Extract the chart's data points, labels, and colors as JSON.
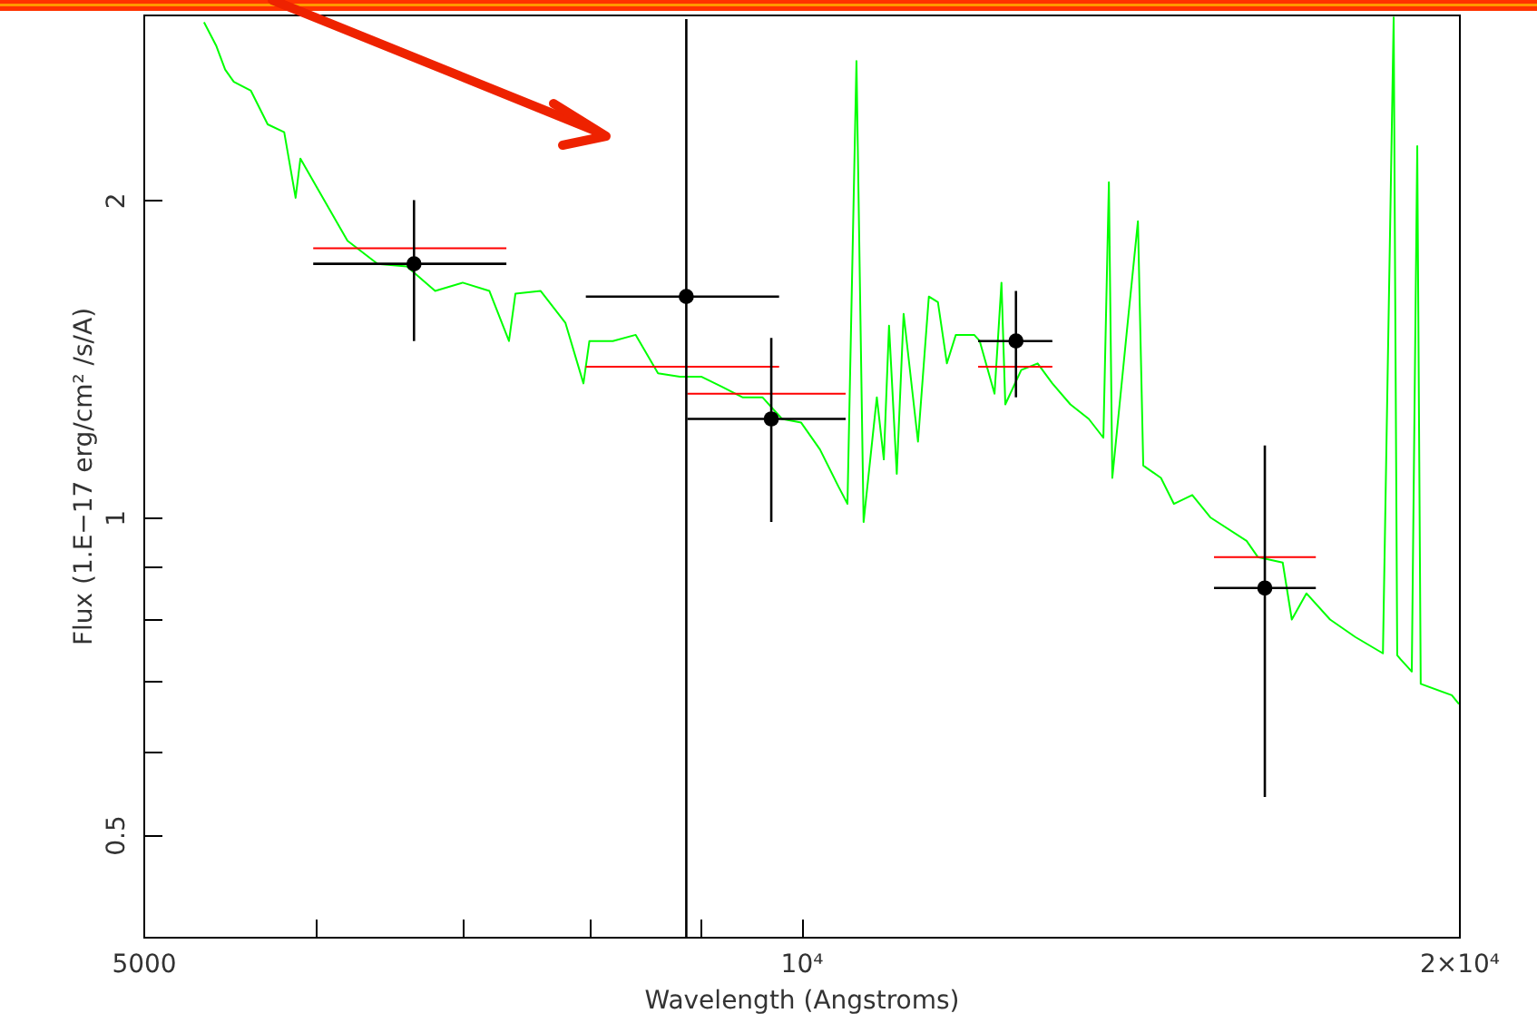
{
  "chart_data": {
    "type": "scatter",
    "xlabel": "Wavelength (Angstroms)",
    "ylabel": "Flux (1.E−17 erg/cm² /s/A)",
    "log": "xy",
    "grid": false,
    "xlim": [
      5000,
      20000
    ],
    "ylim": [
      0.4,
      3
    ],
    "xticks": [
      5000,
      {
        "value": 6000,
        "label": null
      },
      {
        "value": 7000,
        "label": null
      },
      {
        "value": 8000,
        "label": null
      },
      {
        "value": 9000,
        "label": null
      },
      {
        "value": 10000,
        "label": "10⁴"
      },
      {
        "value": 20000,
        "label": "2×10⁴"
      }
    ],
    "yticks": [
      0.5,
      {
        "value": 0.6,
        "label": null
      },
      {
        "value": 0.7,
        "label": null
      },
      {
        "value": 0.8,
        "label": null
      },
      {
        "value": 0.9,
        "label": null
      },
      1,
      2,
      {
        "value": 3,
        "label": null
      }
    ],
    "series": [
      {
        "type": "line",
        "color": "#00ff00",
        "line_style": "solid",
        "x": [
          5330,
          5400,
          5450,
          5500,
          5600,
          5700,
          5800,
          5870,
          5900,
          6000,
          6200,
          6400,
          6600,
          6800,
          7000,
          7200,
          7350,
          7400,
          7600,
          7800,
          7950,
          8000,
          8200,
          8400,
          8600,
          8800,
          9000,
          9200,
          9400,
          9600,
          9800,
          10000,
          10200,
          10400,
          10500,
          10600,
          10680,
          10830,
          10910,
          10970,
          11060,
          11140,
          11310,
          11440,
          11550,
          11660,
          11770,
          12000,
          12070,
          12260,
          12350,
          12400,
          12610,
          12830,
          13030,
          13280,
          13540,
          13750,
          13830,
          13880,
          14120,
          14260,
          14340,
          14610,
          14810,
          15100,
          15390,
          15990,
          16180,
          16610,
          16770,
          17030,
          17460,
          17930,
          18460,
          18670,
          18740,
          18800,
          19030,
          19140,
          19210,
          19850,
          20000
        ],
        "values": [
          2.95,
          2.8,
          2.66,
          2.59,
          2.54,
          2.36,
          2.32,
          2.01,
          2.19,
          2.06,
          1.83,
          1.74,
          1.73,
          1.64,
          1.67,
          1.64,
          1.47,
          1.63,
          1.64,
          1.53,
          1.34,
          1.47,
          1.47,
          1.49,
          1.37,
          1.36,
          1.36,
          1.33,
          1.3,
          1.3,
          1.24,
          1.23,
          1.16,
          1.07,
          1.03,
          2.71,
          0.99,
          1.3,
          1.135,
          1.52,
          1.1,
          1.56,
          1.18,
          1.62,
          1.6,
          1.4,
          1.49,
          1.49,
          1.47,
          1.31,
          1.67,
          1.28,
          1.38,
          1.4,
          1.34,
          1.28,
          1.24,
          1.19,
          2.08,
          1.09,
          1.56,
          1.91,
          1.12,
          1.09,
          1.03,
          1.05,
          1.0,
          0.95,
          0.917,
          0.906,
          0.8,
          0.847,
          0.8,
          0.77,
          0.743,
          2.98,
          0.74,
          0.734,
          0.714,
          2.25,
          0.695,
          0.678,
          0.665
        ]
      },
      {
        "type": "line",
        "color": "#ff0000",
        "x": [
          5980,
          7330
        ],
        "values": [
          1.8,
          1.8
        ]
      },
      {
        "type": "line",
        "color": "#ff0000",
        "x": [
          7970,
          9770
        ],
        "values": [
          1.39,
          1.39
        ]
      },
      {
        "type": "line",
        "color": "#ff0000",
        "x": [
          8870,
          10480
        ],
        "values": [
          1.31,
          1.31
        ]
      },
      {
        "type": "line",
        "color": "#ff0000",
        "x": [
          12050,
          13030
        ],
        "values": [
          1.39,
          1.39
        ]
      },
      {
        "type": "line",
        "color": "#ff0000",
        "x": [
          15450,
          17200
        ],
        "values": [
          0.917,
          0.917
        ]
      },
      {
        "color": "#000000",
        "marker": "circle",
        "x": [
          6650,
          8860,
          9690,
          12540,
          16300
        ],
        "values": [
          1.74,
          1.62,
          1.24,
          1.47,
          0.857
        ],
        "errors": [
          [
            1.47,
            2.0
          ],
          [
            0.4,
            2.97
          ],
          [
            0.99,
            1.48
          ],
          [
            1.3,
            1.64
          ],
          [
            0.543,
            1.17
          ]
        ],
        "xerrors": [
          [
            5980,
            7330
          ],
          [
            7970,
            9770
          ],
          [
            8870,
            10480
          ],
          [
            12050,
            13030
          ],
          [
            15450,
            17200
          ]
        ]
      }
    ]
  }
}
